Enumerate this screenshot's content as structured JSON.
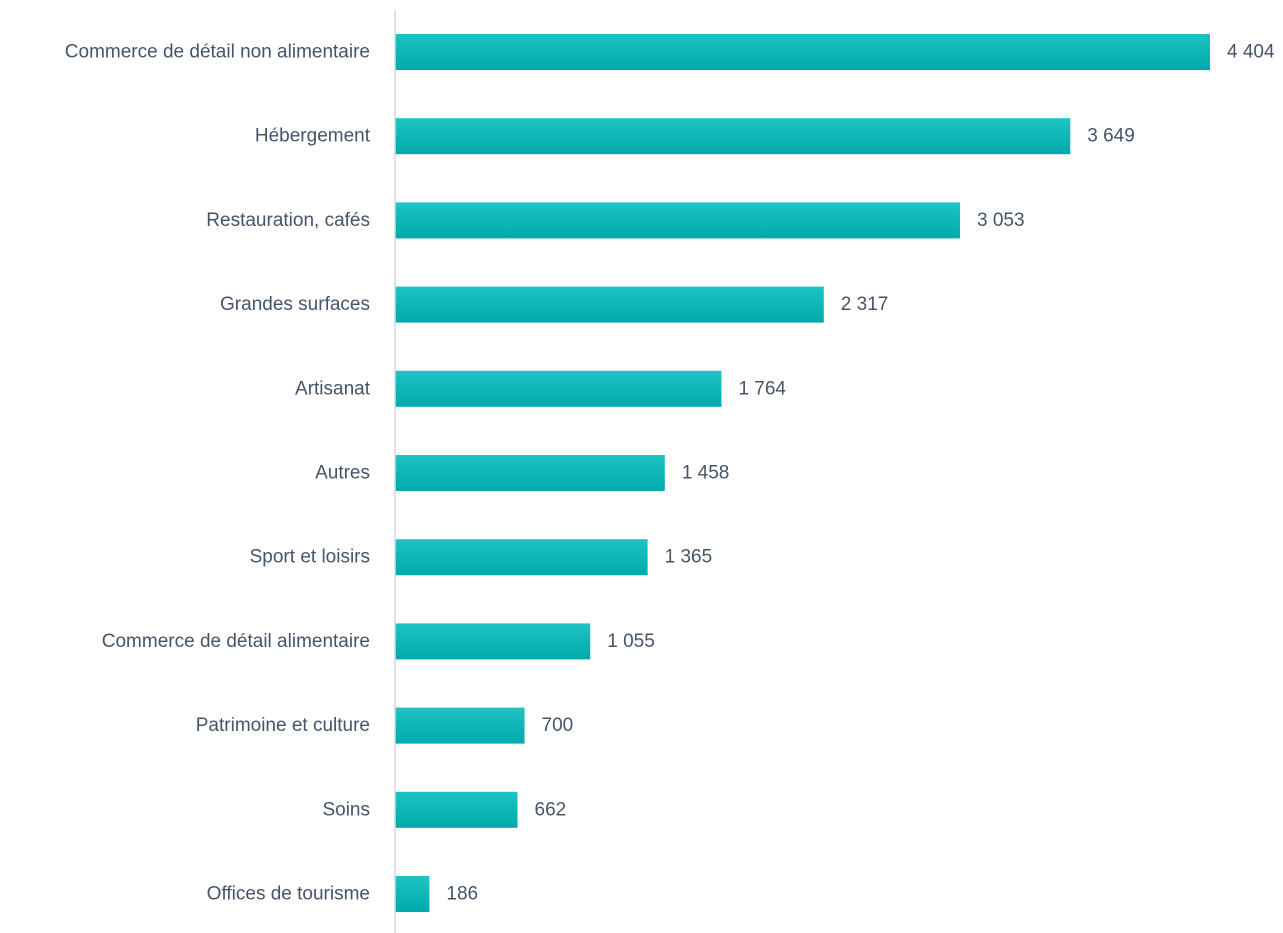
{
  "chart_data": {
    "type": "bar",
    "orientation": "horizontal",
    "categories": [
      "Commerce de détail non alimentaire",
      "Hébergement",
      "Restauration, cafés",
      "Grandes surfaces",
      "Artisanat",
      "Autres",
      "Sport et loisirs",
      "Commerce de détail alimentaire",
      "Patrimoine et culture",
      "Soins",
      "Offices de tourisme"
    ],
    "values": [
      4404,
      3649,
      3053,
      2317,
      1764,
      1458,
      1365,
      1055,
      700,
      662,
      186
    ],
    "value_labels": [
      "4 404",
      "3 649",
      "3 053",
      "2 317",
      "1 764",
      "1 458",
      "1 365",
      "1 055",
      "700",
      "662",
      "186"
    ],
    "title": "",
    "xlabel": "",
    "ylabel": "",
    "xlim": [
      0,
      4404
    ],
    "grid": false,
    "legend": "none",
    "colors": {
      "bar_top": "#1fc4c4",
      "bar_bottom": "#00a9ab",
      "axis": "#d9d9d9",
      "text": "#44546a"
    }
  }
}
